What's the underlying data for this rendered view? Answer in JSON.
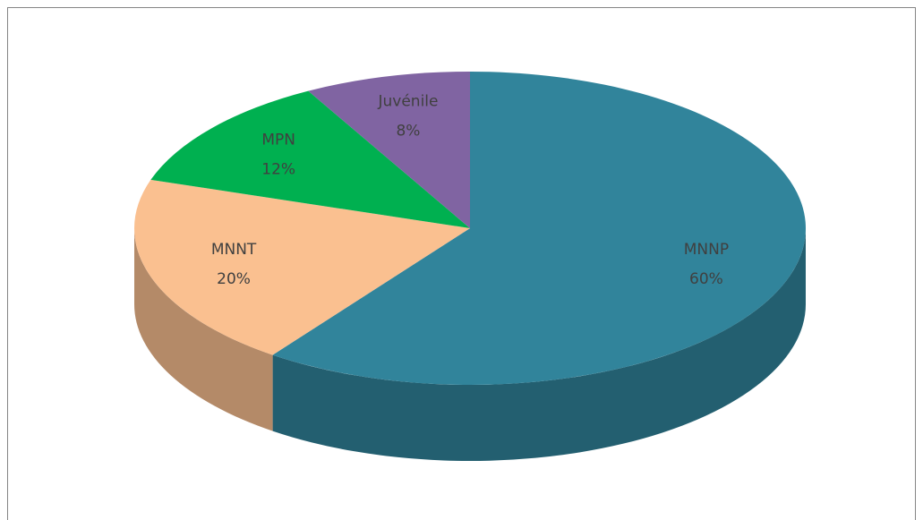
{
  "chart_data": {
    "type": "pie",
    "categories": [
      "MNNP",
      "MNNT",
      "MPN",
      "Juvénile"
    ],
    "values": [
      60,
      20,
      12,
      8
    ],
    "value_labels": [
      "60%",
      "20%",
      "12%",
      "8%"
    ],
    "colors": [
      "#31849b",
      "#fac090",
      "#00b050",
      "#8064a2"
    ]
  }
}
